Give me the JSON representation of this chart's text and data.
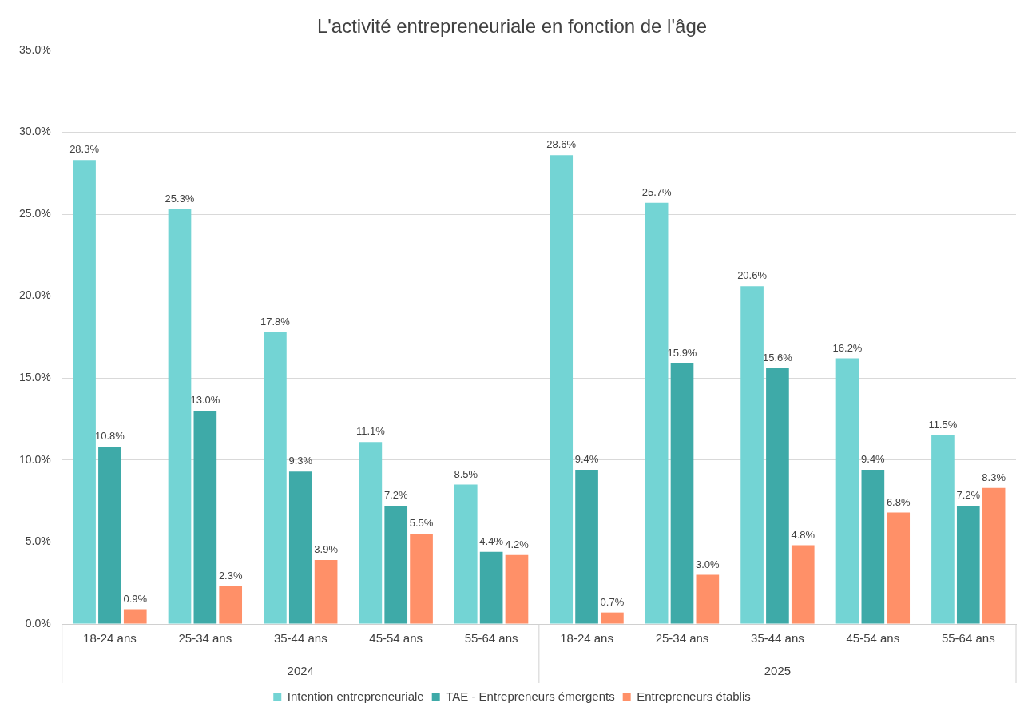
{
  "chart_data": {
    "type": "bar",
    "title": "L'activité entrepreneuriale en fonction de l'âge",
    "categories": [
      "18-24 ans",
      "25-34 ans",
      "35-44 ans",
      "45-54 ans",
      "55-64 ans",
      "18-24 ans",
      "25-34 ans",
      "35-44 ans",
      "45-54 ans",
      "55-64 ans"
    ],
    "series": [
      {
        "name": "Intention entrepreneuriale",
        "color": "#73d4d4",
        "values": [
          28.3,
          25.3,
          17.8,
          11.1,
          8.5,
          28.6,
          25.7,
          20.6,
          16.2,
          11.5
        ],
        "value_labels": [
          "28.3%",
          "25.3%",
          "17.8%",
          "11.1%",
          "8.5%",
          "28.6%",
          "25.7%",
          "20.6%",
          "16.2%",
          "11.5%"
        ]
      },
      {
        "name": "TAE - Entrepreneurs émergents",
        "color": "#3eaaa8",
        "values": [
          10.8,
          13.0,
          9.3,
          7.2,
          4.4,
          9.4,
          15.9,
          15.6,
          9.4,
          7.2
        ],
        "value_labels": [
          "10.8%",
          "13.0%",
          "9.3%",
          "7.2%",
          "4.4%",
          "9.4%",
          "15.9%",
          "15.6%",
          "9.4%",
          "7.2%"
        ]
      },
      {
        "name": "Entrepreneurs établis",
        "color": "#ff9068",
        "values": [
          0.9,
          2.3,
          3.9,
          5.5,
          4.2,
          0.7,
          3.0,
          4.8,
          6.8,
          8.3
        ],
        "value_labels": [
          "0.9%",
          "2.3%",
          "3.9%",
          "5.5%",
          "4.2%",
          "0.7%",
          "3.0%",
          "4.8%",
          "6.8%",
          "8.3%"
        ]
      }
    ],
    "ylim": [
      0,
      35
    ],
    "yticks": [
      {
        "value": 0,
        "label": "0.0%"
      },
      {
        "value": 5,
        "label": "5.0%"
      },
      {
        "value": 10,
        "label": "10.0%"
      },
      {
        "value": 15,
        "label": "15.0%"
      },
      {
        "value": 20,
        "label": "20.0%"
      },
      {
        "value": 25,
        "label": "25.0%"
      },
      {
        "value": 30,
        "label": "30.0%"
      },
      {
        "value": 35,
        "label": "35.0%"
      }
    ],
    "annotations": [
      "2024",
      "2025"
    ],
    "grid": "y",
    "legend": "bottom"
  }
}
